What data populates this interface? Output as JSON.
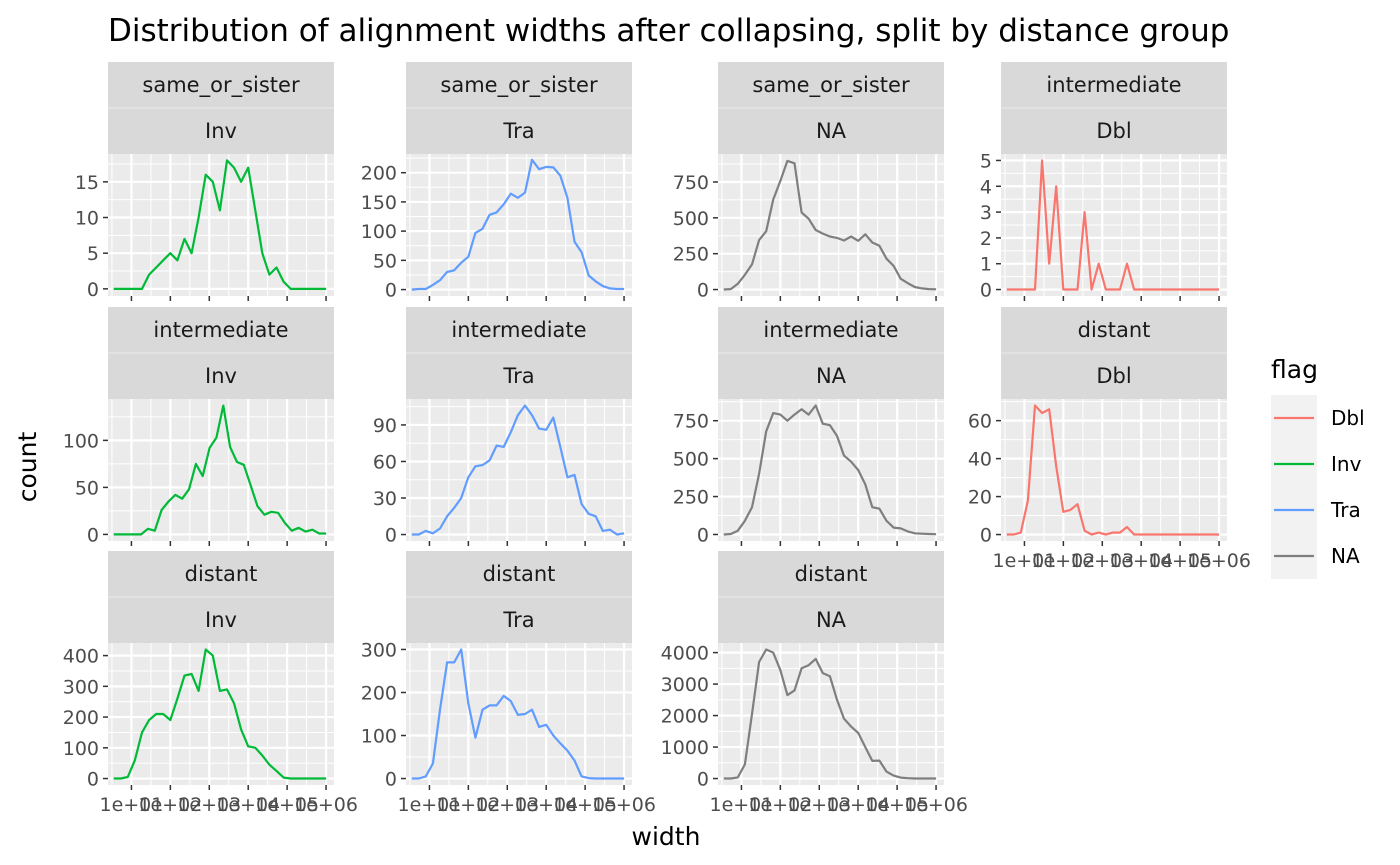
{
  "chart_data": {
    "type": "line",
    "title": "Distribution of alignment widths after collapsing, split by distance group",
    "xlabel": "width",
    "ylabel": "count",
    "x_scale": "log10",
    "x_tick_labels": [
      "1e+01",
      "1e+02",
      "1e+03",
      "1e+04",
      "1e+05",
      "1e+06"
    ],
    "x_tick_values": [
      10,
      100,
      1000,
      10000,
      100000,
      1000000
    ],
    "x_limits": [
      2.5,
      1600000
    ],
    "grid": true,
    "legend": {
      "title": "flag",
      "position": "right",
      "entries": [
        {
          "label": "Dbl",
          "color": "#F8766D"
        },
        {
          "label": "Inv",
          "color": "#00BA38"
        },
        {
          "label": "Tra",
          "color": "#619CFF"
        },
        {
          "label": "NA",
          "color": "#7F7F7F"
        }
      ]
    },
    "panels": [
      {
        "row": 0,
        "col": 0,
        "group": "same_or_sister",
        "flag": "Inv",
        "color": "#00BA38",
        "ylim": [
          -1,
          18.9
        ],
        "yticks": [
          0,
          5,
          10,
          15
        ],
        "values": [
          0,
          0,
          0,
          0,
          0,
          2,
          3,
          4,
          5,
          4,
          7,
          5,
          10,
          16,
          15,
          11,
          18,
          17,
          15,
          17,
          11,
          5,
          2,
          3,
          1,
          0,
          0,
          0,
          0,
          0,
          0
        ]
      },
      {
        "row": 0,
        "col": 1,
        "group": "same_or_sister",
        "flag": "Tra",
        "color": "#619CFF",
        "ylim": [
          -11,
          232
        ],
        "yticks": [
          0,
          50,
          100,
          150,
          200
        ],
        "values": [
          0,
          1,
          1,
          8,
          16,
          30,
          33,
          46,
          56,
          97,
          104,
          128,
          132,
          146,
          164,
          157,
          166,
          222,
          206,
          210,
          209,
          195,
          157,
          82,
          64,
          24,
          14,
          6,
          2,
          1,
          1
        ]
      },
      {
        "row": 0,
        "col": 2,
        "group": "same_or_sister",
        "flag": "NA",
        "color": "#7F7F7F",
        "ylim": [
          -45,
          945
        ],
        "yticks": [
          0,
          250,
          500,
          750
        ],
        "values": [
          0,
          3,
          40,
          103,
          175,
          345,
          407,
          627,
          757,
          897,
          880,
          537,
          494,
          415,
          390,
          370,
          360,
          342,
          370,
          340,
          385,
          328,
          305,
          215,
          165,
          75,
          45,
          18,
          8,
          3,
          2
        ]
      },
      {
        "row": 0,
        "col": 3,
        "group": "intermediate",
        "flag": "Dbl",
        "color": "#F8766D",
        "ylim": [
          -0.25,
          5.25
        ],
        "yticks": [
          0,
          1,
          2,
          3,
          4,
          5
        ],
        "values": [
          0,
          0,
          0,
          0,
          0,
          5,
          1,
          4,
          0,
          0,
          0,
          3,
          0,
          1,
          0,
          0,
          0,
          1,
          0,
          0,
          0,
          0,
          0,
          0,
          0,
          0,
          0,
          0,
          0,
          0,
          0
        ]
      },
      {
        "row": 1,
        "col": 0,
        "group": "intermediate",
        "flag": "Inv",
        "color": "#00BA38",
        "ylim": [
          -7,
          144
        ],
        "yticks": [
          0,
          50,
          100
        ],
        "values": [
          0,
          0,
          0,
          0,
          0,
          6,
          4,
          26,
          35,
          42,
          38,
          48,
          75,
          62,
          92,
          103,
          137,
          93,
          77,
          74,
          52,
          30,
          21,
          24,
          23,
          12,
          4,
          7,
          3,
          5,
          1,
          1
        ]
      },
      {
        "row": 1,
        "col": 1,
        "group": "intermediate",
        "flag": "Tra",
        "color": "#619CFF",
        "ylim": [
          -5.3,
          111.3
        ],
        "yticks": [
          0,
          30,
          60,
          90
        ],
        "values": [
          0,
          0,
          3,
          1,
          5,
          15,
          22,
          30,
          47,
          56,
          57,
          61,
          73,
          72,
          84,
          98,
          106,
          98,
          87,
          86,
          96,
          72,
          47,
          49,
          25,
          17,
          15,
          3,
          4,
          0,
          1
        ]
      },
      {
        "row": 1,
        "col": 2,
        "group": "intermediate",
        "flag": "NA",
        "color": "#7F7F7F",
        "ylim": [
          -43,
          893
        ],
        "yticks": [
          0,
          250,
          500,
          750
        ],
        "values": [
          0,
          3,
          25,
          90,
          180,
          400,
          680,
          800,
          790,
          750,
          790,
          825,
          790,
          850,
          730,
          720,
          650,
          520,
          480,
          425,
          330,
          180,
          170,
          90,
          45,
          40,
          20,
          8,
          5,
          3,
          2
        ]
      },
      {
        "row": 1,
        "col": 3,
        "group": "distant",
        "flag": "Dbl",
        "color": "#F8766D",
        "ylim": [
          -3.4,
          71.4
        ],
        "yticks": [
          0,
          20,
          40,
          60
        ],
        "values": [
          0,
          0,
          1,
          18,
          68,
          64,
          66,
          36,
          12,
          13,
          16,
          2,
          0,
          1,
          0,
          1,
          1,
          4,
          0,
          0,
          0,
          0,
          0,
          0,
          0,
          0,
          0,
          0,
          0,
          0,
          0
        ]
      },
      {
        "row": 2,
        "col": 0,
        "group": "distant",
        "flag": "Inv",
        "color": "#00BA38",
        "ylim": [
          -21,
          441
        ],
        "yticks": [
          0,
          100,
          200,
          300,
          400
        ],
        "values": [
          0,
          0,
          5,
          60,
          150,
          190,
          210,
          210,
          190,
          260,
          335,
          340,
          285,
          420,
          400,
          285,
          290,
          245,
          160,
          105,
          100,
          75,
          45,
          25,
          3,
          0,
          0,
          0,
          0,
          0,
          0
        ]
      },
      {
        "row": 2,
        "col": 1,
        "group": "distant",
        "flag": "Tra",
        "color": "#619CFF",
        "ylim": [
          -15,
          315
        ],
        "yticks": [
          0,
          100,
          200,
          300
        ],
        "values": [
          0,
          0,
          5,
          35,
          160,
          270,
          270,
          300,
          175,
          95,
          160,
          170,
          170,
          192,
          180,
          148,
          150,
          160,
          120,
          125,
          100,
          82,
          65,
          42,
          5,
          1,
          0,
          0,
          0,
          0,
          0
        ]
      },
      {
        "row": 2,
        "col": 2,
        "group": "distant",
        "flag": "NA",
        "color": "#7F7F7F",
        "ylim": [
          -205,
          4305
        ],
        "yticks": [
          0,
          1000,
          2000,
          3000,
          4000
        ],
        "values": [
          0,
          0,
          35,
          450,
          2050,
          3700,
          4100,
          4000,
          3450,
          2650,
          2800,
          3500,
          3600,
          3800,
          3350,
          3250,
          2500,
          1900,
          1650,
          1450,
          1000,
          560,
          570,
          220,
          95,
          30,
          10,
          3,
          1,
          0,
          0
        ]
      }
    ]
  }
}
